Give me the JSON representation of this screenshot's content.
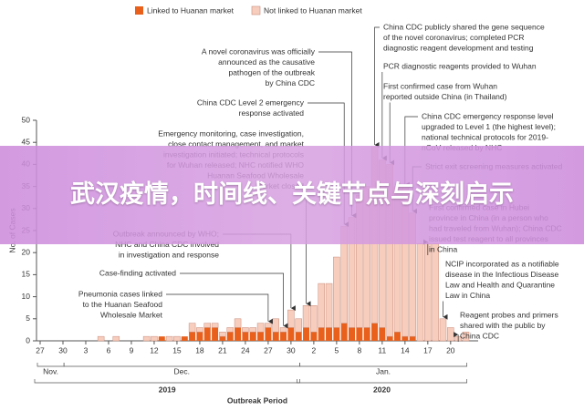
{
  "chart_data": {
    "type": "bar",
    "stacked": true,
    "y_label": "No. of Cases",
    "x_label": "Outbreak Period",
    "categories": [
      "27",
      null,
      null,
      "30",
      null,
      null,
      "3",
      null,
      null,
      "6",
      null,
      null,
      "9",
      null,
      null,
      "12",
      null,
      null,
      "15",
      null,
      null,
      "18",
      null,
      null,
      "21",
      null,
      null,
      "24",
      null,
      null,
      "27",
      null,
      null,
      "30",
      null,
      null,
      "2",
      null,
      null,
      "5",
      null,
      null,
      "8",
      null,
      null,
      "11",
      null,
      null,
      "14",
      null,
      null,
      "17",
      null,
      null,
      "20",
      null,
      null
    ],
    "months": [
      "Nov.",
      "Dec.",
      "Jan."
    ],
    "years": [
      "2019",
      "2020"
    ],
    "series": [
      {
        "name": "Linked to Huanan market",
        "color": "#e8601c",
        "values": [
          0,
          0,
          0,
          0,
          0,
          0,
          0,
          0,
          0,
          0,
          0,
          0,
          0,
          0,
          0,
          0,
          1,
          0,
          0,
          1,
          2,
          2,
          3,
          3,
          1,
          2,
          3,
          2,
          2,
          2,
          3,
          2,
          2,
          3,
          2,
          3,
          2,
          3,
          3,
          3,
          4,
          3,
          3,
          3,
          4,
          3,
          1,
          2,
          1,
          1,
          0,
          0,
          0,
          0,
          0,
          0,
          0
        ]
      },
      {
        "name": "Not linked to Huanan market",
        "color": "#f7cdbd",
        "values": [
          0,
          0,
          0,
          0,
          0,
          0,
          0,
          0,
          1,
          0,
          1,
          0,
          0,
          0,
          1,
          1,
          0,
          1,
          1,
          0,
          2,
          1,
          1,
          1,
          1,
          1,
          2,
          1,
          1,
          2,
          1,
          3,
          1,
          4,
          3,
          5,
          6,
          10,
          10,
          16,
          22,
          25,
          30,
          32,
          40,
          38,
          39,
          33,
          34,
          28,
          22,
          22,
          22,
          5,
          3,
          1,
          2
        ]
      }
    ],
    "ylim": [
      0,
      50
    ],
    "yticks": [
      0,
      5,
      10,
      15,
      20,
      25,
      30,
      35,
      40,
      45,
      50
    ],
    "annotations": [
      {
        "lines": [
          "A novel coronavirus was officially",
          "announced as the causative",
          "pathogen of the outbreak",
          "by China CDC"
        ]
      },
      {
        "lines": [
          "China CDC Level 2 emergency",
          "response activated"
        ]
      },
      {
        "lines": [
          "Emergency monitoring, case investigation,",
          "close contact management, and market",
          "investigation initiated; technical protocols",
          "for Wuhan released; NHC notified WHO",
          "Huanan Seafood Wholesale",
          "Market closed"
        ]
      },
      {
        "lines": [
          "Outbreak announced by WHO;",
          "NHC and China CDC involved",
          "in investigation and response"
        ]
      },
      {
        "lines": [
          "Case-finding activated"
        ]
      },
      {
        "lines": [
          "Pneumonia cases linked",
          "to the Huanan Seafood",
          "Wholesale Market"
        ]
      },
      {
        "lines": [
          "China CDC publicly shared the gene sequence",
          "of the novel coronavirus; completed PCR",
          "diagnostic reagent development and testing"
        ]
      },
      {
        "lines": [
          "PCR diagnostic reagents provided to Wuhan"
        ]
      },
      {
        "lines": [
          "First confirmed case from Wuhan",
          "reported outside China (in Thailand)"
        ]
      },
      {
        "lines": [
          "China CDC emergency response level",
          "upgraded to Level 1 (the highest level);",
          "national technical protocols for 2019-",
          "nCoV released by NHC"
        ]
      },
      {
        "lines": [
          "Strict exit screening measures activated"
        ]
      },
      {
        "lines": [
          "First confirmed case in Hubei",
          "province in China (in a person who",
          "had traveled from Wuhan); China CDC",
          "issued test reagent to all provinces",
          "in China"
        ]
      },
      {
        "lines": [
          "NCIP incorporated as a notifiable",
          "disease in the Infectious Disease",
          "Law and Health and Quarantine",
          "Law in China"
        ]
      },
      {
        "lines": [
          "Reagent probes and primers",
          "shared with the public by",
          "China CDC"
        ]
      }
    ]
  },
  "overlay_title": "武汉疫情，时间线、关键节点与深刻启示"
}
